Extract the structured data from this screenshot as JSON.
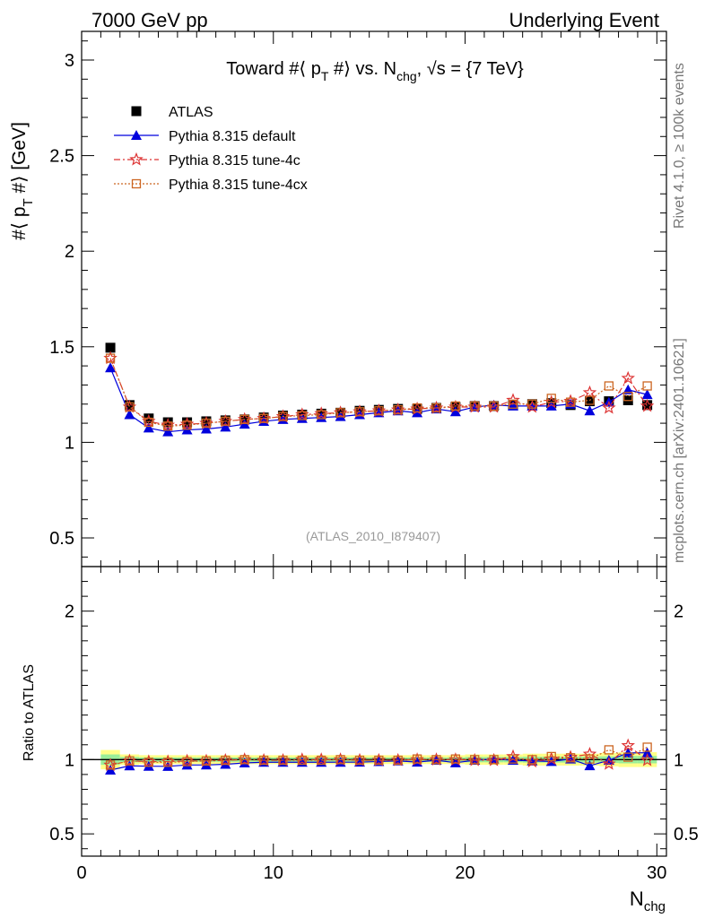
{
  "header": {
    "left": "7000 GeV pp",
    "right": "Underlying Event"
  },
  "side_text": {
    "rivet": "Rivet 4.1.0, ≥ 100k events",
    "mcplots": "mcplots.cern.ch [arXiv:2401.10621]"
  },
  "analysis_id": "(ATLAS_2010_I879407)",
  "chart_data": [
    {
      "type": "scatter",
      "panel": "main",
      "title": "Toward #⟨ p_T #⟩ vs. N_chg, √s = {7 TeV}",
      "title_parts": {
        "a": "Toward #⟨ p",
        "sub1": "T",
        "b": " #⟩ vs. N",
        "sub2": "chg",
        "c": ", √s = {7 TeV}"
      },
      "ylabel": "#⟨ p_T #⟩ [GeV]",
      "ylabel_parts": {
        "a": "#⟨ p",
        "sub": "T",
        "b": " #⟩ [GeV]"
      },
      "xlabel": "N_chg",
      "xlabel_parts": {
        "a": "N",
        "sub": "chg"
      },
      "xlim": [
        0,
        30.5
      ],
      "ylim": [
        0.35,
        3.15
      ],
      "xticks": [
        0,
        10,
        20,
        30
      ],
      "yticks": [
        0.5,
        1,
        1.5,
        2,
        2.5,
        3
      ],
      "ytick_labels": [
        "0.5",
        "1",
        "1.5",
        "2",
        "2.5",
        "3"
      ],
      "xtick_labels": [
        "0",
        "10",
        "20",
        "30"
      ],
      "x": [
        1.5,
        2.5,
        3.5,
        4.5,
        5.5,
        6.5,
        7.5,
        8.5,
        9.5,
        10.5,
        11.5,
        12.5,
        13.5,
        14.5,
        15.5,
        16.5,
        17.5,
        18.5,
        19.5,
        20.5,
        21.5,
        22.5,
        23.5,
        24.5,
        25.5,
        26.5,
        27.5,
        28.5,
        29.5
      ],
      "series": [
        {
          "name": "ATLAS",
          "marker": "square-filled",
          "color": "#000000",
          "values": [
            1.495,
            1.195,
            1.125,
            1.105,
            1.105,
            1.11,
            1.115,
            1.12,
            1.13,
            1.14,
            1.145,
            1.15,
            1.155,
            1.165,
            1.17,
            1.175,
            1.175,
            1.18,
            1.185,
            1.19,
            1.19,
            1.195,
            1.2,
            1.205,
            1.195,
            1.215,
            1.215,
            1.22,
            1.195
          ]
        },
        {
          "name": "Pythia 8.315 default",
          "marker": "triangle-filled",
          "color": "#0000dd",
          "line": "solid",
          "values": [
            1.39,
            1.145,
            1.075,
            1.055,
            1.065,
            1.07,
            1.08,
            1.095,
            1.11,
            1.12,
            1.125,
            1.13,
            1.135,
            1.145,
            1.155,
            1.165,
            1.155,
            1.175,
            1.16,
            1.185,
            1.195,
            1.19,
            1.19,
            1.19,
            1.2,
            1.165,
            1.21,
            1.275,
            1.25
          ]
        },
        {
          "name": "Pythia 8.315 tune-4c",
          "marker": "star-open",
          "color": "#dd3333",
          "line": "dashdot",
          "values": [
            1.44,
            1.185,
            1.11,
            1.09,
            1.095,
            1.1,
            1.11,
            1.12,
            1.125,
            1.135,
            1.145,
            1.15,
            1.155,
            1.16,
            1.165,
            1.17,
            1.175,
            1.18,
            1.185,
            1.185,
            1.185,
            1.22,
            1.185,
            1.21,
            1.215,
            1.26,
            1.18,
            1.335,
            1.19
          ]
        },
        {
          "name": "Pythia 8.315 tune-4cx",
          "marker": "square-open",
          "color": "#cc6622",
          "line": "dotted",
          "values": [
            1.44,
            1.185,
            1.105,
            1.085,
            1.09,
            1.1,
            1.11,
            1.12,
            1.125,
            1.135,
            1.14,
            1.145,
            1.155,
            1.16,
            1.165,
            1.17,
            1.18,
            1.18,
            1.19,
            1.19,
            1.19,
            1.2,
            1.2,
            1.23,
            1.21,
            1.22,
            1.295,
            1.24,
            1.295
          ]
        }
      ]
    },
    {
      "type": "scatter",
      "panel": "ratio",
      "ylabel": "Ratio to ATLAS",
      "xlim": [
        0,
        30.5
      ],
      "ylim": [
        0.35,
        2.3
      ],
      "yticks": [
        0.5,
        1,
        2
      ],
      "ytick_labels": [
        "0.5",
        "1",
        "2"
      ],
      "bands": {
        "yellow_halfwidth": [
          0.065,
          0.035,
          0.03,
          0.03,
          0.03,
          0.03,
          0.03,
          0.03,
          0.03,
          0.03,
          0.03,
          0.03,
          0.03,
          0.03,
          0.03,
          0.03,
          0.03,
          0.03,
          0.03,
          0.035,
          0.035,
          0.035,
          0.04,
          0.04,
          0.04,
          0.04,
          0.045,
          0.05,
          0.05
        ],
        "green_halfwidth": [
          0.035,
          0.018,
          0.015,
          0.015,
          0.015,
          0.015,
          0.015,
          0.015,
          0.015,
          0.015,
          0.015,
          0.015,
          0.015,
          0.015,
          0.015,
          0.015,
          0.015,
          0.015,
          0.015,
          0.018,
          0.018,
          0.018,
          0.02,
          0.02,
          0.02,
          0.02,
          0.022,
          0.025,
          0.025
        ]
      },
      "colors": {
        "yellow": "#ffff88",
        "green": "#99ee99"
      }
    }
  ],
  "legend_position": "top-left"
}
